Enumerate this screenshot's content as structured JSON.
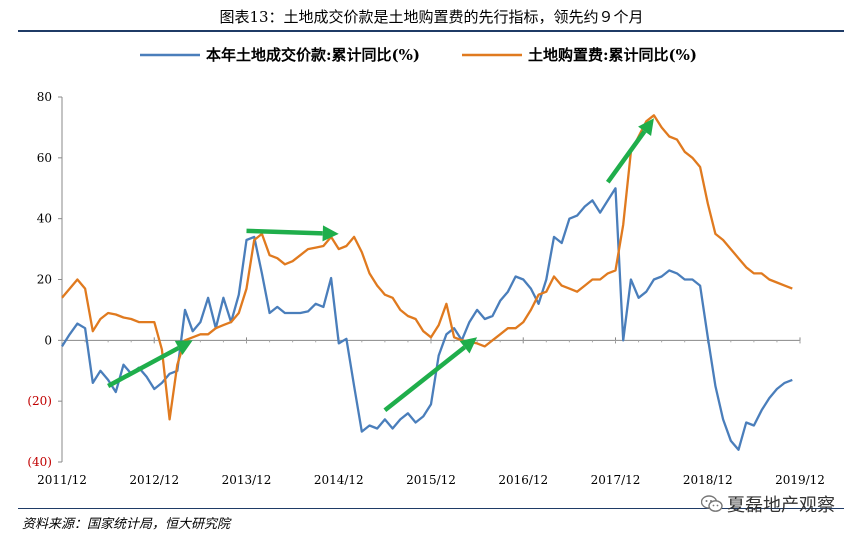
{
  "title": "图表13：土地成交价款是土地购置费的先行指标，领先约９个月",
  "source": "资料来源：国家统计局，恒大研究院",
  "watermark": "夏磊地产观察",
  "colors": {
    "series1": "#4a7ebb",
    "series2": "#e07a1f",
    "arrow": "#1fae4b",
    "negative_tick": "#c00000",
    "rule": "#1f3b66"
  },
  "chart_data": {
    "type": "line",
    "title": "图表13：土地成交价款是土地购置费的先行指标，领先约９个月",
    "xlabel": "",
    "ylabel": "",
    "ylim": [
      -40,
      80
    ],
    "yticks": [
      80,
      60,
      40,
      20,
      0,
      -20,
      -40
    ],
    "ytick_labels": [
      "80",
      "60",
      "40",
      "20",
      "0",
      "(20)",
      "(40)"
    ],
    "xlim": [
      "2011-12",
      "2019-12"
    ],
    "xtick_labels": [
      "2011/12",
      "2012/12",
      "2013/12",
      "2014/12",
      "2015/12",
      "2016/12",
      "2017/12",
      "2018/12",
      "2019/12"
    ],
    "grid": false,
    "legend": "top-center",
    "series": [
      {
        "name": "本年土地成交价款:累计同比(%)",
        "points": [
          [
            "2011-12",
            -2
          ],
          [
            "2012-01",
            2
          ],
          [
            "2012-02",
            5.5
          ],
          [
            "2012-03",
            4
          ],
          [
            "2012-04",
            -14
          ],
          [
            "2012-05",
            -10
          ],
          [
            "2012-06",
            -13
          ],
          [
            "2012-07",
            -17
          ],
          [
            "2012-08",
            -8
          ],
          [
            "2012-09",
            -11
          ],
          [
            "2012-10",
            -9
          ],
          [
            "2012-11",
            -12
          ],
          [
            "2012-12",
            -16
          ],
          [
            "2013-01",
            -14
          ],
          [
            "2013-02",
            -11
          ],
          [
            "2013-03",
            -10
          ],
          [
            "2013-04",
            10
          ],
          [
            "2013-05",
            3
          ],
          [
            "2013-06",
            6
          ],
          [
            "2013-07",
            14
          ],
          [
            "2013-08",
            4
          ],
          [
            "2013-09",
            14
          ],
          [
            "2013-10",
            6
          ],
          [
            "2013-11",
            15
          ],
          [
            "2013-12",
            33
          ],
          [
            "2014-01",
            34
          ],
          [
            "2014-02",
            22
          ],
          [
            "2014-03",
            9
          ],
          [
            "2014-04",
            11
          ],
          [
            "2014-05",
            9
          ],
          [
            "2014-06",
            9
          ],
          [
            "2014-07",
            9
          ],
          [
            "2014-08",
            9.5
          ],
          [
            "2014-09",
            12
          ],
          [
            "2014-10",
            11
          ],
          [
            "2014-11",
            20.5
          ],
          [
            "2014-12",
            -1
          ],
          [
            "2015-01",
            0.5
          ],
          [
            "2015-02",
            -15
          ],
          [
            "2015-03",
            -30
          ],
          [
            "2015-04",
            -28
          ],
          [
            "2015-05",
            -29
          ],
          [
            "2015-06",
            -26
          ],
          [
            "2015-07",
            -29
          ],
          [
            "2015-08",
            -26
          ],
          [
            "2015-09",
            -24
          ],
          [
            "2015-10",
            -27
          ],
          [
            "2015-11",
            -25
          ],
          [
            "2015-12",
            -21
          ],
          [
            "2016-01",
            -5
          ],
          [
            "2016-02",
            2
          ],
          [
            "2016-03",
            4
          ],
          [
            "2016-04",
            0
          ],
          [
            "2016-05",
            6
          ],
          [
            "2016-06",
            10
          ],
          [
            "2016-07",
            7
          ],
          [
            "2016-08",
            8
          ],
          [
            "2016-09",
            13
          ],
          [
            "2016-10",
            16
          ],
          [
            "2016-11",
            21
          ],
          [
            "2016-12",
            20
          ],
          [
            "2017-01",
            17
          ],
          [
            "2017-02",
            12
          ],
          [
            "2017-03",
            20
          ],
          [
            "2017-04",
            34
          ],
          [
            "2017-05",
            32
          ],
          [
            "2017-06",
            40
          ],
          [
            "2017-07",
            41
          ],
          [
            "2017-08",
            44
          ],
          [
            "2017-09",
            46
          ],
          [
            "2017-10",
            42
          ],
          [
            "2017-11",
            46
          ],
          [
            "2017-12",
            50
          ],
          [
            "2018-01",
            0
          ],
          [
            "2018-02",
            20
          ],
          [
            "2018-03",
            14
          ],
          [
            "2018-04",
            16
          ],
          [
            "2018-05",
            20
          ],
          [
            "2018-06",
            21
          ],
          [
            "2018-07",
            23
          ],
          [
            "2018-08",
            22
          ],
          [
            "2018-09",
            20
          ],
          [
            "2018-10",
            20
          ],
          [
            "2018-11",
            18
          ],
          [
            "2018-12",
            1
          ],
          [
            "2019-01",
            -15
          ],
          [
            "2019-02",
            -26
          ],
          [
            "2019-03",
            -33
          ],
          [
            "2019-04",
            -36
          ],
          [
            "2019-05",
            -27
          ],
          [
            "2019-06",
            -28
          ],
          [
            "2019-07",
            -23
          ],
          [
            "2019-08",
            -19
          ],
          [
            "2019-09",
            -16
          ],
          [
            "2019-10",
            -14
          ],
          [
            "2019-11",
            -13
          ]
        ]
      },
      {
        "name": "土地购置费:累计同比(%)",
        "points": [
          [
            "2011-12",
            14
          ],
          [
            "2012-01",
            17
          ],
          [
            "2012-02",
            20
          ],
          [
            "2012-03",
            17
          ],
          [
            "2012-04",
            3
          ],
          [
            "2012-05",
            7
          ],
          [
            "2012-06",
            9
          ],
          [
            "2012-07",
            8.5
          ],
          [
            "2012-08",
            7.5
          ],
          [
            "2012-09",
            7
          ],
          [
            "2012-10",
            6
          ],
          [
            "2012-11",
            6
          ],
          [
            "2012-12",
            6
          ],
          [
            "2013-01",
            -3
          ],
          [
            "2013-02",
            -26
          ],
          [
            "2013-03",
            -8
          ],
          [
            "2013-04",
            0
          ],
          [
            "2013-05",
            1
          ],
          [
            "2013-06",
            2
          ],
          [
            "2013-07",
            2
          ],
          [
            "2013-08",
            4
          ],
          [
            "2013-09",
            5
          ],
          [
            "2013-10",
            6
          ],
          [
            "2013-11",
            9
          ],
          [
            "2013-12",
            17
          ],
          [
            "2014-01",
            33
          ],
          [
            "2014-02",
            35
          ],
          [
            "2014-03",
            28
          ],
          [
            "2014-04",
            27
          ],
          [
            "2014-05",
            25
          ],
          [
            "2014-06",
            26
          ],
          [
            "2014-07",
            28
          ],
          [
            "2014-08",
            30
          ],
          [
            "2014-09",
            30.5
          ],
          [
            "2014-10",
            31
          ],
          [
            "2014-11",
            34
          ],
          [
            "2014-12",
            30
          ],
          [
            "2015-01",
            31
          ],
          [
            "2015-02",
            34
          ],
          [
            "2015-03",
            29
          ],
          [
            "2015-04",
            22
          ],
          [
            "2015-05",
            18
          ],
          [
            "2015-06",
            15
          ],
          [
            "2015-07",
            14
          ],
          [
            "2015-08",
            10
          ],
          [
            "2015-09",
            8
          ],
          [
            "2015-10",
            7
          ],
          [
            "2015-11",
            3
          ],
          [
            "2015-12",
            1
          ],
          [
            "2016-01",
            5
          ],
          [
            "2016-02",
            12
          ],
          [
            "2016-03",
            1
          ],
          [
            "2016-04",
            0
          ],
          [
            "2016-05",
            -0.5
          ],
          [
            "2016-06",
            -1
          ],
          [
            "2016-07",
            -2
          ],
          [
            "2016-08",
            0
          ],
          [
            "2016-09",
            2
          ],
          [
            "2016-10",
            4
          ],
          [
            "2016-11",
            4
          ],
          [
            "2016-12",
            6
          ],
          [
            "2017-01",
            10
          ],
          [
            "2017-02",
            15
          ],
          [
            "2017-03",
            16
          ],
          [
            "2017-04",
            21
          ],
          [
            "2017-05",
            18
          ],
          [
            "2017-06",
            17
          ],
          [
            "2017-07",
            16
          ],
          [
            "2017-08",
            18
          ],
          [
            "2017-09",
            20
          ],
          [
            "2017-10",
            20
          ],
          [
            "2017-11",
            22
          ],
          [
            "2017-12",
            23
          ],
          [
            "2018-01",
            38
          ],
          [
            "2018-02",
            62
          ],
          [
            "2018-03",
            67
          ],
          [
            "2018-04",
            72
          ],
          [
            "2018-05",
            74
          ],
          [
            "2018-06",
            70
          ],
          [
            "2018-07",
            67
          ],
          [
            "2018-08",
            66
          ],
          [
            "2018-09",
            62
          ],
          [
            "2018-10",
            60
          ],
          [
            "2018-11",
            57
          ],
          [
            "2018-12",
            45
          ],
          [
            "2019-01",
            35
          ],
          [
            "2019-02",
            33
          ],
          [
            "2019-03",
            30
          ],
          [
            "2019-04",
            27
          ],
          [
            "2019-05",
            24
          ],
          [
            "2019-06",
            22
          ],
          [
            "2019-07",
            22
          ],
          [
            "2019-08",
            20
          ],
          [
            "2019-09",
            19
          ],
          [
            "2019-10",
            18
          ],
          [
            "2019-11",
            17
          ]
        ]
      }
    ],
    "annotations": [
      {
        "type": "arrow",
        "from": [
          "2012-06",
          -15
        ],
        "to": [
          "2013-05",
          0
        ]
      },
      {
        "type": "arrow",
        "from": [
          "2013-12",
          36
        ],
        "to": [
          "2014-12",
          35
        ]
      },
      {
        "type": "arrow",
        "from": [
          "2015-06",
          -23
        ],
        "to": [
          "2016-06",
          1
        ]
      },
      {
        "type": "arrow",
        "from": [
          "2017-11",
          52
        ],
        "to": [
          "2018-05",
          73
        ]
      }
    ]
  }
}
